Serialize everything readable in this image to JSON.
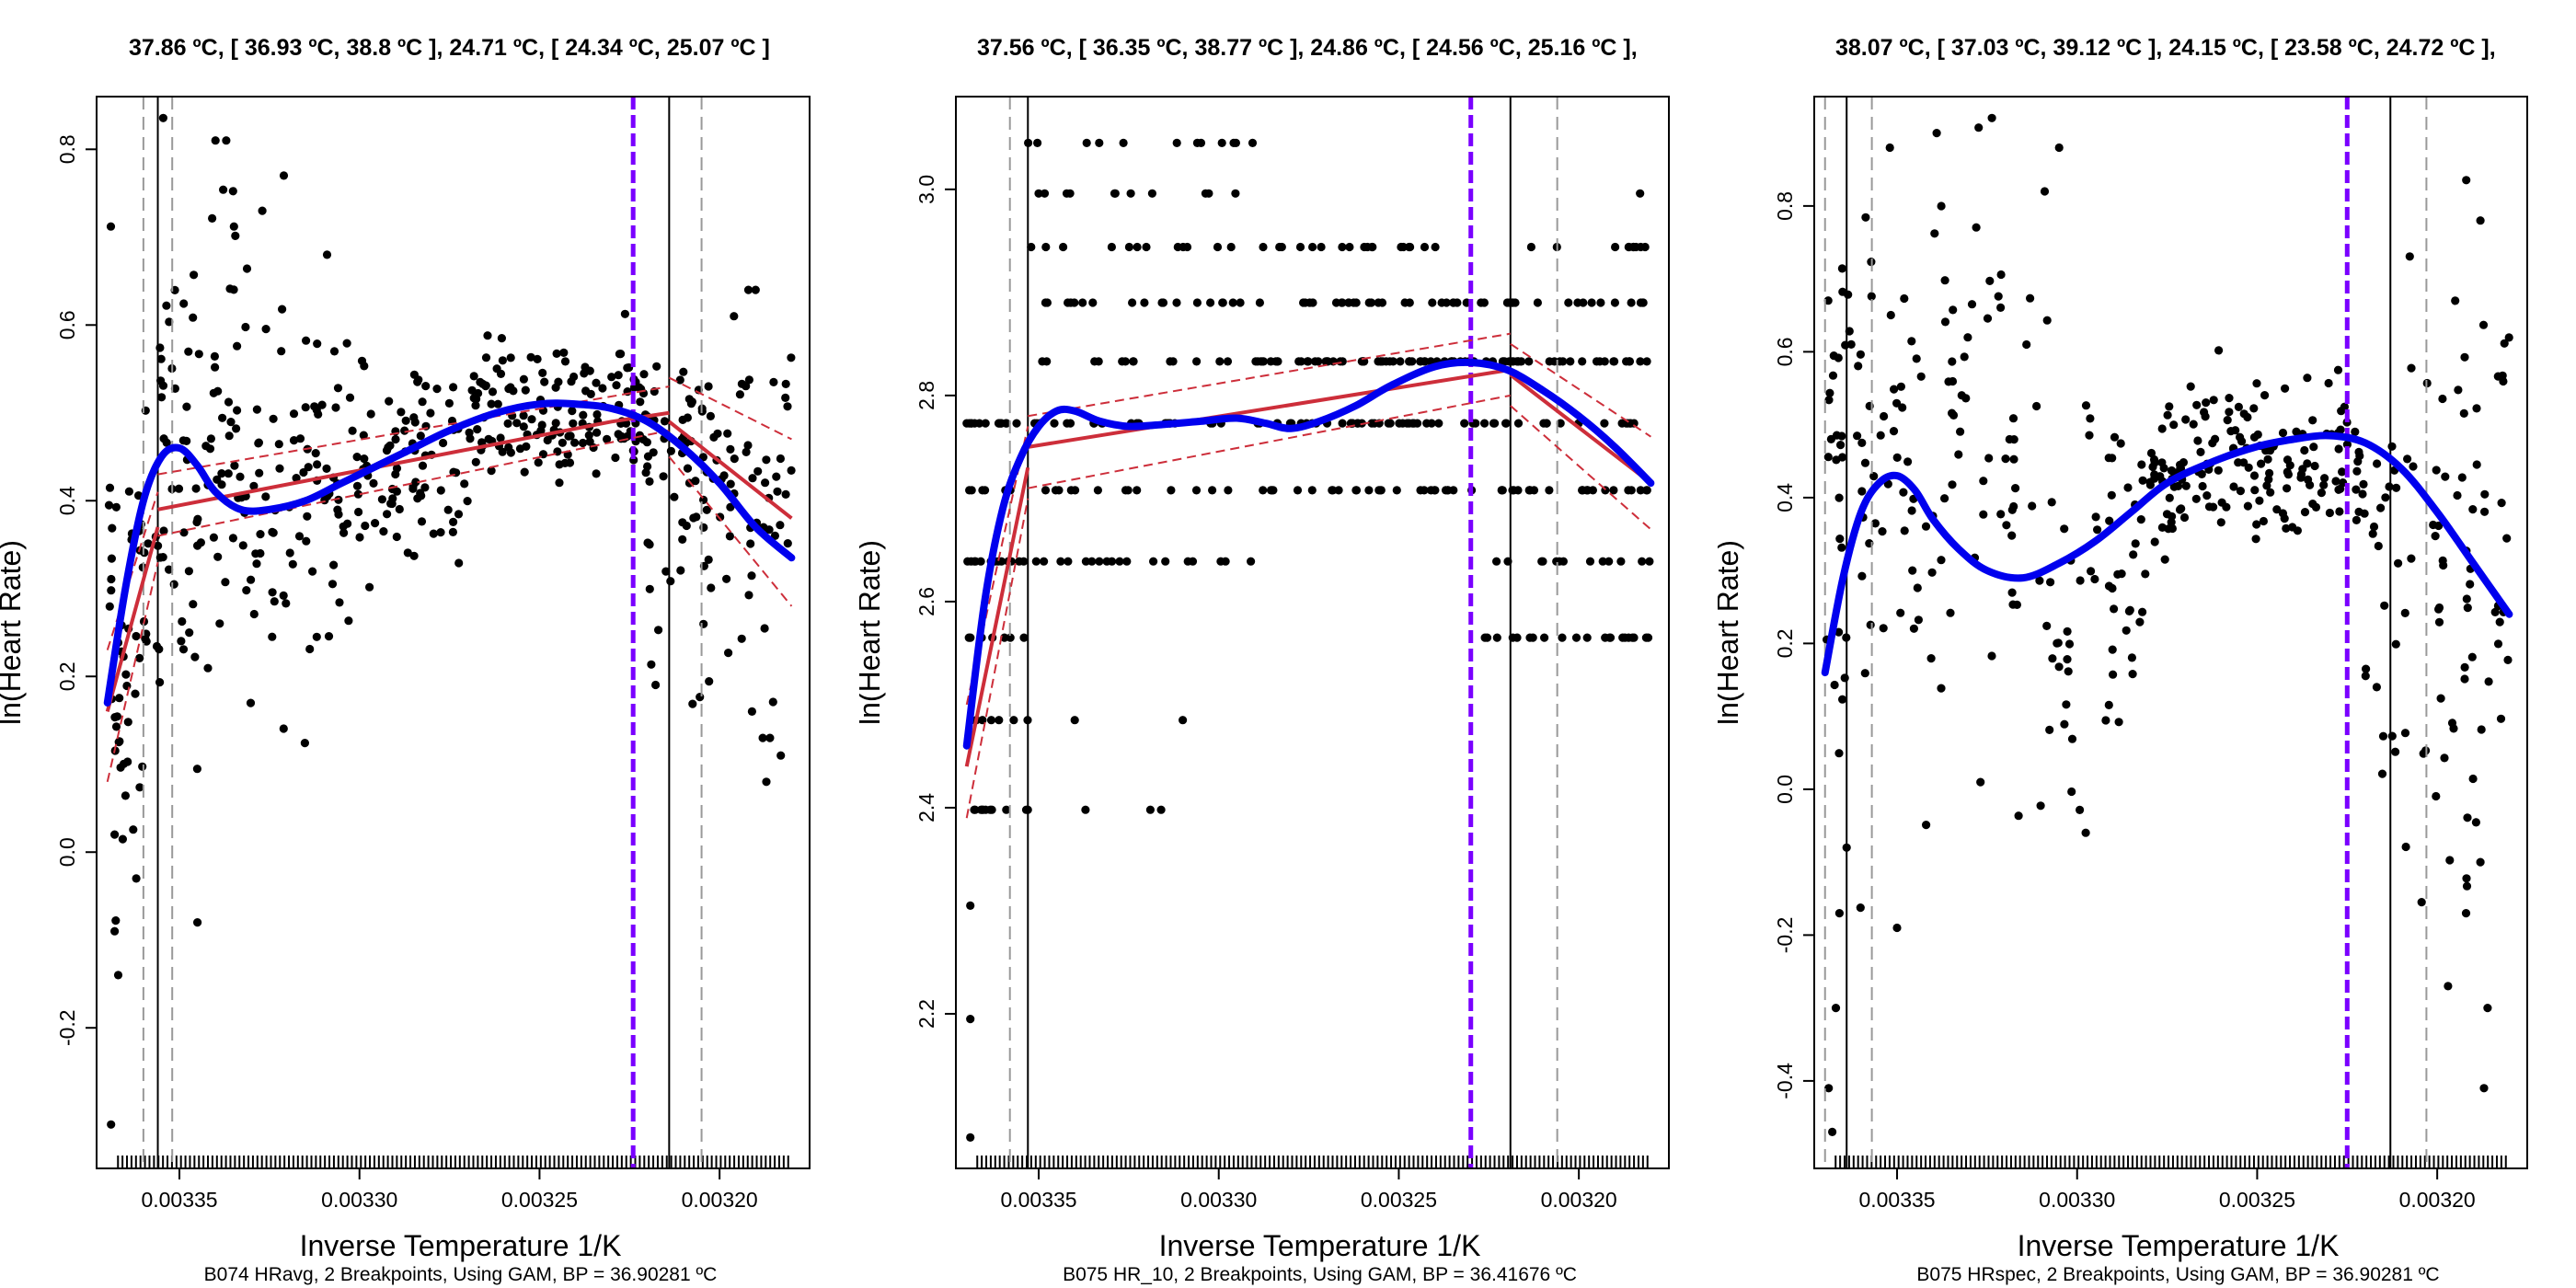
{
  "colors": {
    "background": "#ffffff",
    "points": "#000000",
    "gam_fit": "#0000ee",
    "linear_fit": "#cd2e3a",
    "breakpoint_bp": "#7a00ff",
    "breakpoint_line": "#000000",
    "ci_line": "#999999"
  },
  "panels": [
    {
      "title": "37.86 ºC, [ 36.93 ºC, 38.8 ºC ], 24.71 ºC, [ 24.34 ºC, 25.07 ºC ]",
      "caption": "B074 HRavg, 2 Breakpoints, Using GAM, BP = 36.90281 ºC",
      "xlabel": "Inverse Temperature 1/K",
      "ylabel": "ln(Heart Rate)"
    },
    {
      "title": "37.56 ºC, [ 36.35 ºC, 38.77 ºC ], 24.86 ºC, [ 24.56 ºC, 25.16 ºC ],",
      "caption": "B075 HR_10, 2 Breakpoints, Using GAM, BP = 36.41676 ºC",
      "xlabel": "Inverse Temperature 1/K",
      "ylabel": "ln(Heart Rate)"
    },
    {
      "title": "38.07 ºC, [ 37.03 ºC, 39.12 ºC ], 24.15 ºC, [ 23.58 ºC, 24.72 ºC ],",
      "caption": "B075 HRspec, 2 Breakpoints, Using GAM, BP = 36.90281 ºC",
      "xlabel": "Inverse Temperature 1/K",
      "ylabel": "ln(Heart Rate)"
    }
  ],
  "chart_data": [
    {
      "type": "scatter",
      "x_reversed": true,
      "xlim": [
        0.003373,
        0.003175
      ],
      "ylim": [
        -0.36,
        0.86
      ],
      "xticks": [
        0.00335,
        0.0033,
        0.00325,
        0.0032
      ],
      "xtick_labels": [
        "0.00335",
        "0.00330",
        "0.00325",
        "0.00320"
      ],
      "yticks": [
        -0.2,
        0.0,
        0.2,
        0.4,
        0.6,
        0.8
      ],
      "ytick_labels": [
        "-0.2",
        "0.0",
        "0.2",
        "0.4",
        "0.6",
        "0.8"
      ],
      "vlines_solid": [
        0.003356,
        0.003214
      ],
      "vlines_dashed": [
        0.00336,
        0.003352,
        0.003205
      ],
      "vline_bp": 0.003224,
      "gam_fit": [
        [
          0.00337,
          0.17
        ],
        [
          0.003365,
          0.3
        ],
        [
          0.00336,
          0.4
        ],
        [
          0.003355,
          0.45
        ],
        [
          0.00335,
          0.46
        ],
        [
          0.003345,
          0.44
        ],
        [
          0.00334,
          0.41
        ],
        [
          0.003333,
          0.39
        ],
        [
          0.003325,
          0.39
        ],
        [
          0.003315,
          0.4
        ],
        [
          0.003305,
          0.42
        ],
        [
          0.003295,
          0.44
        ],
        [
          0.003285,
          0.46
        ],
        [
          0.003275,
          0.48
        ],
        [
          0.003262,
          0.5
        ],
        [
          0.00325,
          0.51
        ],
        [
          0.00324,
          0.51
        ],
        [
          0.00323,
          0.505
        ],
        [
          0.00322,
          0.49
        ],
        [
          0.00321,
          0.46
        ],
        [
          0.0032,
          0.42
        ],
        [
          0.00319,
          0.37
        ],
        [
          0.00318,
          0.335
        ]
      ],
      "linear_fit": [
        [
          [
            0.00337,
            0.16
          ],
          [
            0.003356,
            0.37
          ]
        ],
        [
          [
            0.003356,
            0.39
          ],
          [
            0.00323,
            0.49
          ],
          [
            0.003214,
            0.5
          ]
        ],
        [
          [
            0.003214,
            0.49
          ],
          [
            0.00318,
            0.38
          ]
        ]
      ],
      "linear_ci": [
        [
          [
            0.00337,
            0.08
          ],
          [
            0.003356,
            0.33
          ]
        ],
        [
          [
            0.00337,
            0.23
          ],
          [
            0.003356,
            0.41
          ]
        ],
        [
          [
            0.003356,
            0.36
          ],
          [
            0.003214,
            0.48
          ]
        ],
        [
          [
            0.003356,
            0.43
          ],
          [
            0.003214,
            0.53
          ]
        ],
        [
          [
            0.003214,
            0.45
          ],
          [
            0.00318,
            0.28
          ]
        ],
        [
          [
            0.003214,
            0.54
          ],
          [
            0.00318,
            0.47
          ]
        ]
      ],
      "scatter": {
        "seed": 11,
        "groups": [
          {
            "x": [
              0.00337,
              0.003356
            ],
            "n": 55,
            "y_mean": 0.25,
            "y_sd": 0.13
          },
          {
            "x": [
              0.003356,
              0.00333
            ],
            "n": 90,
            "y_mean": 0.45,
            "y_sd": 0.14
          },
          {
            "x": [
              0.00333,
              0.0033
            ],
            "n": 80,
            "y_mean": 0.4,
            "y_sd": 0.12
          },
          {
            "x": [
              0.0033,
              0.00327
            ],
            "n": 80,
            "y_mean": 0.44,
            "y_sd": 0.06
          },
          {
            "x": [
              0.00327,
              0.00322
            ],
            "n": 150,
            "y_mean": 0.5,
            "y_sd": 0.04
          },
          {
            "x": [
              0.00322,
              0.00318
            ],
            "n": 110,
            "y_mean": 0.42,
            "y_sd": 0.11
          }
        ],
        "outliers": [
          [
            0.003369,
            -0.31
          ],
          [
            0.003368,
            -0.09
          ],
          [
            0.003367,
            -0.14
          ],
          [
            0.003368,
            0.02
          ],
          [
            0.003362,
            -0.03
          ],
          [
            0.003345,
            -0.08
          ],
          [
            0.00334,
            0.81
          ],
          [
            0.003337,
            0.81
          ],
          [
            0.003321,
            0.77
          ],
          [
            0.003327,
            0.73
          ],
          [
            0.003309,
            0.68
          ],
          [
            0.003196,
            0.61
          ],
          [
            0.003192,
            0.64
          ],
          [
            0.00319,
            0.64
          ],
          [
            0.003191,
            0.16
          ],
          [
            0.003188,
            0.13
          ],
          [
            0.003187,
            0.08
          ],
          [
            0.003183,
            0.11
          ],
          [
            0.003186,
            0.13
          ]
        ]
      }
    },
    {
      "type": "scatter",
      "x_reversed": true,
      "xlim": [
        0.003373,
        0.003175
      ],
      "ylim": [
        2.05,
        3.09
      ],
      "xticks": [
        0.00335,
        0.0033,
        0.00325,
        0.0032
      ],
      "xtick_labels": [
        "0.00335",
        "0.00330",
        "0.00325",
        "0.00320"
      ],
      "yticks": [
        2.2,
        2.4,
        2.6,
        2.8,
        3.0
      ],
      "ytick_labels": [
        "2.2",
        "2.4",
        "2.6",
        "2.8",
        "3.0"
      ],
      "vlines_solid": [
        0.003353,
        0.003219
      ],
      "vlines_dashed": [
        0.003358,
        0.003206
      ],
      "vline_bp": 0.00323,
      "gam_fit": [
        [
          0.00337,
          2.46
        ],
        [
          0.003365,
          2.6
        ],
        [
          0.00336,
          2.69
        ],
        [
          0.003355,
          2.74
        ],
        [
          0.00335,
          2.77
        ],
        [
          0.003345,
          2.785
        ],
        [
          0.00334,
          2.785
        ],
        [
          0.003333,
          2.775
        ],
        [
          0.003325,
          2.77
        ],
        [
          0.003315,
          2.772
        ],
        [
          0.003305,
          2.775
        ],
        [
          0.003295,
          2.778
        ],
        [
          0.003287,
          2.773
        ],
        [
          0.00328,
          2.768
        ],
        [
          0.003272,
          2.775
        ],
        [
          0.003262,
          2.79
        ],
        [
          0.003252,
          2.81
        ],
        [
          0.00324,
          2.828
        ],
        [
          0.00323,
          2.832
        ],
        [
          0.00322,
          2.825
        ],
        [
          0.00321,
          2.805
        ],
        [
          0.0032,
          2.78
        ],
        [
          0.00319,
          2.75
        ],
        [
          0.00318,
          2.715
        ]
      ],
      "linear_fit": [
        [
          [
            0.00337,
            2.44
          ],
          [
            0.003353,
            2.73
          ]
        ],
        [
          [
            0.003353,
            2.75
          ],
          [
            0.003219,
            2.825
          ]
        ],
        [
          [
            0.003219,
            2.82
          ],
          [
            0.00318,
            2.715
          ]
        ]
      ],
      "linear_ci": [
        [
          [
            0.00337,
            2.39
          ],
          [
            0.003353,
            2.7
          ]
        ],
        [
          [
            0.00337,
            2.5
          ],
          [
            0.003353,
            2.77
          ]
        ],
        [
          [
            0.003353,
            2.71
          ],
          [
            0.003219,
            2.8
          ]
        ],
        [
          [
            0.003353,
            2.78
          ],
          [
            0.003219,
            2.86
          ]
        ],
        [
          [
            0.003219,
            2.79
          ],
          [
            0.00318,
            2.67
          ]
        ],
        [
          [
            0.003219,
            2.85
          ],
          [
            0.00318,
            2.76
          ]
        ]
      ],
      "scatter": {
        "seed": 23,
        "levels": [
          2.398,
          2.485,
          2.565,
          2.639,
          2.708,
          2.773,
          2.833,
          2.89,
          2.944,
          2.996,
          3.045
        ],
        "groups": [
          {
            "x": [
              0.00337,
              0.003353
            ],
            "n": 60,
            "levels": [
              2.398,
              2.485,
              2.565,
              2.639,
              2.708,
              2.773
            ]
          },
          {
            "x": [
              0.003353,
              0.00329
            ],
            "n": 120,
            "levels": [
              2.639,
              2.708,
              2.773,
              2.773,
              2.773,
              2.833,
              2.833,
              2.89,
              2.944,
              2.996,
              3.045
            ]
          },
          {
            "x": [
              0.00329,
              0.00323
            ],
            "n": 160,
            "levels": [
              2.708,
              2.773,
              2.773,
              2.833,
              2.833,
              2.833,
              2.89,
              2.944
            ]
          },
          {
            "x": [
              0.00323,
              0.00318
            ],
            "n": 140,
            "levels": [
              2.565,
              2.639,
              2.708,
              2.708,
              2.773,
              2.773,
              2.833,
              2.833,
              2.89,
              2.944
            ]
          }
        ],
        "outliers": [
          [
            0.003369,
            2.08
          ],
          [
            0.003369,
            2.195
          ],
          [
            0.003369,
            2.305
          ],
          [
            0.003366,
            2.398
          ],
          [
            0.003363,
            2.398
          ],
          [
            0.003359,
            2.398
          ],
          [
            0.003337,
            2.398
          ],
          [
            0.003319,
            2.398
          ],
          [
            0.003316,
            2.398
          ],
          [
            0.00334,
            2.485
          ],
          [
            0.00331,
            2.485
          ],
          [
            0.003183,
            2.996
          ]
        ]
      }
    },
    {
      "type": "scatter",
      "x_reversed": true,
      "xlim": [
        0.003373,
        0.003175
      ],
      "ylim": [
        -0.52,
        0.95
      ],
      "xticks": [
        0.00335,
        0.0033,
        0.00325,
        0.0032
      ],
      "xtick_labels": [
        "0.00335",
        "0.00330",
        "0.00325",
        "0.00320"
      ],
      "yticks": [
        -0.4,
        -0.2,
        0.0,
        0.2,
        0.4,
        0.6,
        0.8
      ],
      "ytick_labels": [
        "-0.4",
        "-0.2",
        "0.0",
        "0.2",
        "0.4",
        "0.6",
        "0.8"
      ],
      "vlines_solid": [
        0.003364,
        0.003213
      ],
      "vlines_dashed": [
        0.00337,
        0.003357,
        0.003203
      ],
      "vline_bp": 0.003225,
      "gam_fit": [
        [
          0.00337,
          0.16
        ],
        [
          0.003365,
          0.29
        ],
        [
          0.00336,
          0.38
        ],
        [
          0.003355,
          0.42
        ],
        [
          0.00335,
          0.43
        ],
        [
          0.003345,
          0.41
        ],
        [
          0.00334,
          0.37
        ],
        [
          0.003333,
          0.33
        ],
        [
          0.003325,
          0.3
        ],
        [
          0.003315,
          0.29
        ],
        [
          0.003305,
          0.31
        ],
        [
          0.003295,
          0.34
        ],
        [
          0.003285,
          0.38
        ],
        [
          0.003275,
          0.42
        ],
        [
          0.003262,
          0.45
        ],
        [
          0.00325,
          0.47
        ],
        [
          0.00324,
          0.48
        ],
        [
          0.00323,
          0.485
        ],
        [
          0.00322,
          0.475
        ],
        [
          0.00321,
          0.44
        ],
        [
          0.0032,
          0.38
        ],
        [
          0.00319,
          0.31
        ],
        [
          0.00318,
          0.24
        ]
      ],
      "linear_fit": [],
      "linear_ci": [],
      "scatter": {
        "seed": 37,
        "groups": [
          {
            "x": [
              0.00337,
              0.003357
            ],
            "n": 45,
            "y_mean": 0.35,
            "y_sd": 0.25
          },
          {
            "x": [
              0.003357,
              0.00331
            ],
            "n": 90,
            "y_mean": 0.45,
            "y_sd": 0.2
          },
          {
            "x": [
              0.00331,
              0.00328
            ],
            "n": 60,
            "y_mean": 0.25,
            "y_sd": 0.13
          },
          {
            "x": [
              0.00328,
              0.00327
            ],
            "n": 40,
            "y_mean": 0.42,
            "y_sd": 0.05
          },
          {
            "x": [
              0.00327,
              0.00322
            ],
            "n": 130,
            "y_mean": 0.45,
            "y_sd": 0.05
          },
          {
            "x": [
              0.00322,
              0.00318
            ],
            "n": 90,
            "y_mean": 0.28,
            "y_sd": 0.2
          }
        ],
        "outliers": [
          [
            0.003369,
            -0.41
          ],
          [
            0.003368,
            -0.47
          ],
          [
            0.003367,
            -0.3
          ],
          [
            0.003366,
            -0.17
          ],
          [
            0.003364,
            -0.08
          ],
          [
            0.00335,
            -0.19
          ],
          [
            0.003352,
            0.88
          ],
          [
            0.003339,
            0.9
          ],
          [
            0.003305,
            0.88
          ],
          [
            0.003309,
            0.82
          ],
          [
            0.003197,
            -0.27
          ],
          [
            0.003192,
            -0.17
          ],
          [
            0.003188,
            -0.1
          ],
          [
            0.003187,
            -0.41
          ],
          [
            0.003186,
            -0.3
          ],
          [
            0.003188,
            0.78
          ],
          [
            0.003195,
            0.67
          ]
        ]
      }
    }
  ]
}
